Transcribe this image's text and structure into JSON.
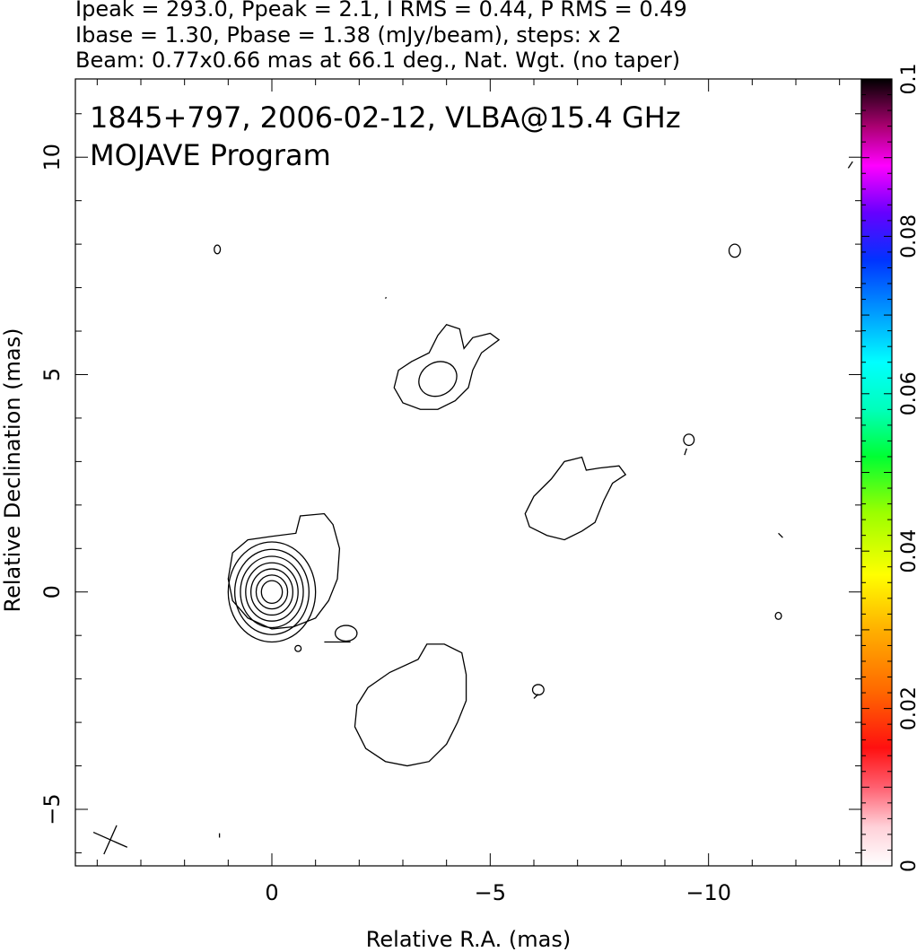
{
  "header": {
    "line1": "Ipeak = 293.0, Ppeak = 2.1, I RMS = 0.44, P RMS = 0.49",
    "line2": "Ibase = 1.30, Pbase = 1.38 (mJy/beam), steps: x 2",
    "line3": "Beam: 0.77x0.66 mas at 66.1 deg., Nat. Wgt. (no taper)"
  },
  "chart_data": {
    "type": "contour",
    "annotation_lines": [
      "1845+797, 2006-02-12, VLBA@15.4 GHz",
      "MOJAVE Program"
    ],
    "xlabel": "Relative R.A. (mas)",
    "ylabel": "Relative Declination (mas)",
    "xlim": [
      4.5,
      -13.5
    ],
    "ylim": [
      -6.3,
      11.8
    ],
    "x_ticks": [
      0,
      -5,
      -10
    ],
    "x_tick_labels": [
      "0",
      "−5",
      "−10"
    ],
    "y_ticks": [
      -5,
      0,
      5,
      10
    ],
    "y_tick_labels": [
      "−5",
      "0",
      "5",
      "10"
    ],
    "core_position": [
      0,
      0
    ],
    "core_contour_radii_x": [
      1.0,
      0.85,
      0.72,
      0.6,
      0.48,
      0.36,
      0.24
    ],
    "core_contour_radii_y": [
      1.15,
      0.98,
      0.82,
      0.67,
      0.53,
      0.39,
      0.26
    ],
    "jet_components": [
      {
        "center": [
          -3.7,
          5.0
        ],
        "contour_levels": 2
      },
      {
        "center": [
          -6.8,
          2.0
        ],
        "contour_levels": 1
      },
      {
        "center": [
          -3.3,
          -2.8
        ],
        "contour_levels": 1
      }
    ],
    "beam": {
      "major_mas": 0.77,
      "minor_mas": 0.66,
      "pa_deg": 66.1,
      "position": [
        3.7,
        -5.7
      ]
    },
    "colorbar": {
      "range": [
        0,
        0.1
      ],
      "ticks": [
        0,
        0.02,
        0.04,
        0.06,
        0.08,
        0.1
      ],
      "tick_labels": [
        "0",
        "0.02",
        "0.04",
        "0.06",
        "0.08",
        "0.1"
      ]
    }
  }
}
